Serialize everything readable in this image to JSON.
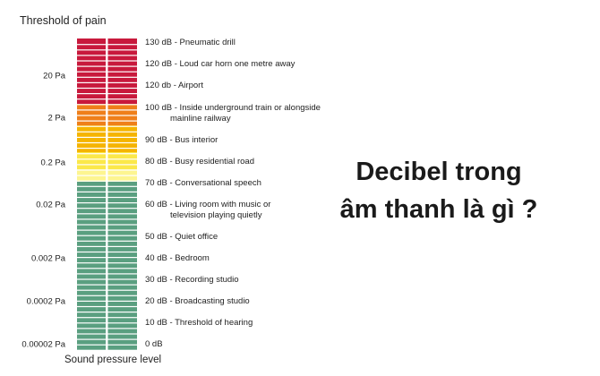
{
  "top_label": "Threshold of pain",
  "bottom_label": "Sound pressure level",
  "headline": {
    "line1": "Decibel trong",
    "line2": "âm thanh là gì ?"
  },
  "pressure_labels": [
    "20 Pa",
    "2 Pa",
    "0.2 Pa",
    "0.02 Pa",
    "0.002 Pa",
    "0.0002 Pa",
    "0.00002 Pa"
  ],
  "db_levels": [
    {
      "db": 130,
      "line1": "130 dB - Pneumatic drill",
      "line2": ""
    },
    {
      "db": 120,
      "line1": "120 dB - Loud car horn one metre away",
      "line2": ""
    },
    {
      "db": 120,
      "line1": "120 db - Airport",
      "line2": ""
    },
    {
      "db": 100,
      "line1": "100 dB - Inside underground train or alongside",
      "line2": "mainline railway"
    },
    {
      "db": 90,
      "line1": "90 dB - Bus interior",
      "line2": ""
    },
    {
      "db": 80,
      "line1": "80 dB - Busy residential road",
      "line2": ""
    },
    {
      "db": 70,
      "line1": "70 dB - Conversational speech",
      "line2": ""
    },
    {
      "db": 60,
      "line1": "60 dB - Living room with music or",
      "line2": "television playing quietly"
    },
    {
      "db": 50,
      "line1": "50 dB - Quiet office",
      "line2": ""
    },
    {
      "db": 40,
      "line1": "40 dB - Bedroom",
      "line2": ""
    },
    {
      "db": 30,
      "line1": "30 dB - Recording studio",
      "line2": ""
    },
    {
      "db": 20,
      "line1": "20 dB - Broadcasting studio",
      "line2": ""
    },
    {
      "db": 10,
      "line1": "10 dB - Threshold of hearing",
      "line2": ""
    },
    {
      "db": 0,
      "line1": "0 dB",
      "line2": ""
    }
  ],
  "colors": {
    "red": "#c8193c",
    "orange": "#ef7f1a",
    "amber": "#f5b400",
    "yellow": "#fbe84a",
    "pale_yellow": "#fdf590",
    "green": "#5a9f80",
    "divider": "#ffffff"
  }
}
